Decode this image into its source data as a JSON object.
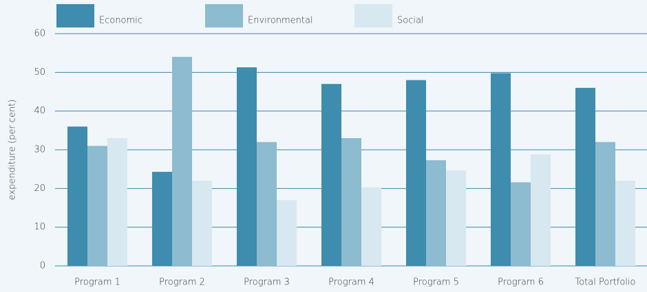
{
  "chart_data": {
    "type": "bar",
    "y_label": "expenditure (per cent)",
    "categories": [
      "Program 1",
      "Program 2",
      "Program 3",
      "Program 4",
      "Program 5",
      "Program 6",
      "Total Portfolio"
    ],
    "series": [
      {
        "name": "Economic",
        "color": "#3e8cae",
        "values": [
          36,
          24.3,
          51.3,
          47,
          48,
          49.8,
          46
        ]
      },
      {
        "name": "Environmental",
        "color": "#8dbbd0",
        "values": [
          31,
          54,
          32,
          33,
          27.3,
          21.6,
          32
        ]
      },
      {
        "name": "Social",
        "color": "#d8e8f0",
        "values": [
          33,
          22,
          17,
          20.3,
          24.7,
          28.8,
          22
        ]
      }
    ],
    "ylim": [
      0,
      60
    ],
    "yticks": [
      0,
      10,
      20,
      30,
      40,
      50,
      60
    ],
    "grid": true
  }
}
